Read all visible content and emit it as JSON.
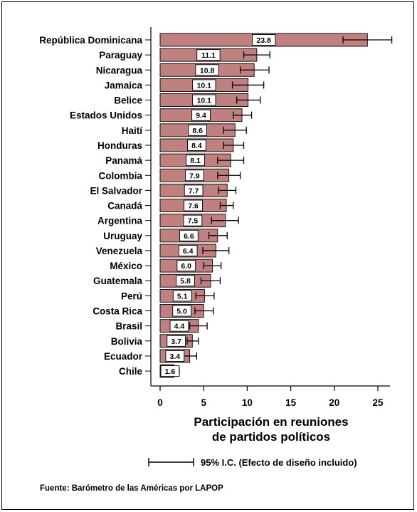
{
  "chart_data": {
    "type": "bar",
    "orientation": "horizontal",
    "categories": [
      "República Dominicana",
      "Paraguay",
      "Nicaragua",
      "Jamaica",
      "Belice",
      "Estados Unidos",
      "Haití",
      "Honduras",
      "Panamá",
      "Colombia",
      "El Salvador",
      "Canadá",
      "Argentina",
      "Uruguay",
      "Venezuela",
      "México",
      "Guatemala",
      "Perú",
      "Costa Rica",
      "Brasil",
      "Bolivia",
      "Ecuador",
      "Chile"
    ],
    "values": [
      23.8,
      11.1,
      10.8,
      10.1,
      10.1,
      9.4,
      8.6,
      8.4,
      8.1,
      7.9,
      7.7,
      7.6,
      7.5,
      6.6,
      6.4,
      6.0,
      5.8,
      5.1,
      5.0,
      4.4,
      3.7,
      3.4,
      1.6
    ],
    "value_labels": [
      "23.8",
      "11.1",
      "10.8",
      "10.1",
      "10.1",
      "9.4",
      "8.6",
      "8.4",
      "8.1",
      "7.9",
      "7.7",
      "7.6",
      "7.5",
      "6.6",
      "6.4",
      "6.0",
      "5.8",
      "5.1",
      "5.0",
      "4.4",
      "3.7",
      "3.4",
      "1.6"
    ],
    "ci_low": [
      21.0,
      9.6,
      9.2,
      8.3,
      8.8,
      8.4,
      7.3,
      7.3,
      6.6,
      6.6,
      6.7,
      6.9,
      5.9,
      5.6,
      4.9,
      5.0,
      4.7,
      4.1,
      4.0,
      3.4,
      3.1,
      2.6,
      1.1
    ],
    "ci_high": [
      26.6,
      12.6,
      12.5,
      11.9,
      11.5,
      10.5,
      9.9,
      9.6,
      9.6,
      9.2,
      8.7,
      8.4,
      9.0,
      7.7,
      7.9,
      7.0,
      6.9,
      6.2,
      6.1,
      5.4,
      4.4,
      4.2,
      2.2
    ],
    "xlim": [
      0,
      27
    ],
    "xticks": [
      "0",
      "5",
      "10",
      "15",
      "20",
      "25"
    ],
    "xlabel_line1": "Participación en reuniones",
    "xlabel_line2": "de partidos políticos",
    "legend_label": "95% I.C. (Efecto de diseño incluido)",
    "source": "Fuente: Barómetro de las Américas por LAPOP",
    "bar_color": "#c08080",
    "bar_edge_color": "#000000",
    "grid": false
  }
}
